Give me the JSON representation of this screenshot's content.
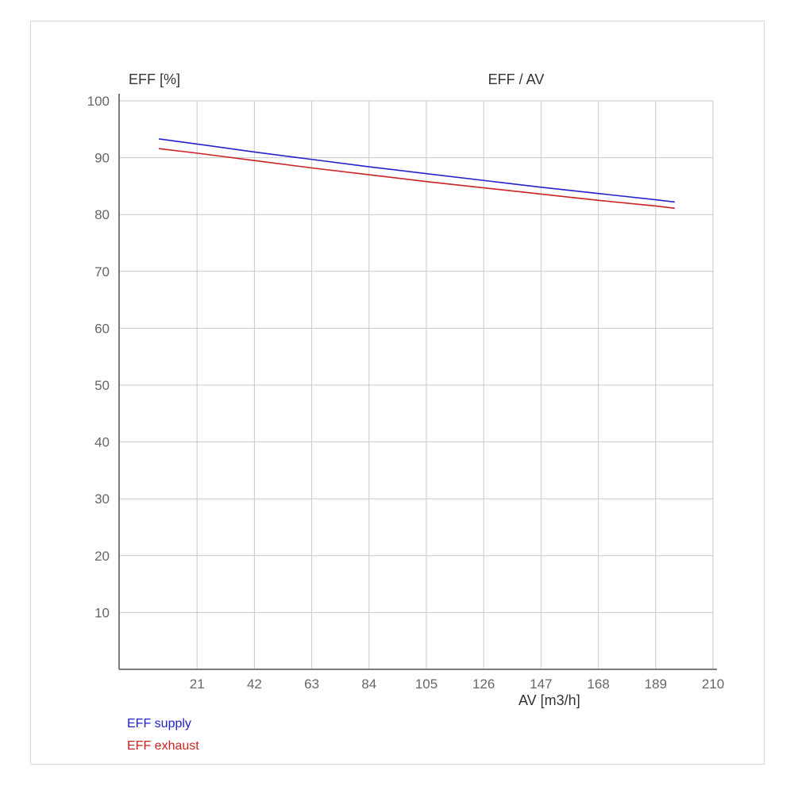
{
  "page": {
    "background": "#ffffff",
    "frame_color": "#d8d8d8"
  },
  "chart_data": {
    "type": "line",
    "title": "EFF / AV",
    "ylabel": "EFF [%]",
    "xlabel": "AV [m3/h]",
    "grid": true,
    "legend_position": "bottom-left",
    "xlim": [
      0,
      210
    ],
    "ylim": [
      0,
      100
    ],
    "x_ticks": [
      21,
      42,
      63,
      84,
      105,
      126,
      147,
      168,
      189,
      210
    ],
    "y_ticks": [
      10,
      20,
      30,
      40,
      50,
      60,
      70,
      80,
      90,
      100
    ],
    "x": [
      7,
      21,
      42,
      63,
      84,
      105,
      126,
      147,
      168,
      189,
      196
    ],
    "series": [
      {
        "name": "EFF supply",
        "color": "#2222cc",
        "values": [
          93.3,
          92.4,
          91.0,
          89.7,
          88.4,
          87.2,
          86.0,
          84.8,
          83.7,
          82.6,
          82.2
        ]
      },
      {
        "name": "EFF exhaust",
        "color": "#cc2222",
        "values": [
          91.6,
          90.8,
          89.5,
          88.2,
          87.0,
          85.8,
          84.7,
          83.6,
          82.5,
          81.5,
          81.1
        ]
      }
    ],
    "colors": {
      "grid": "#c9c9c9",
      "axis": "#7a7a7a",
      "tick_text": "#666666"
    }
  }
}
